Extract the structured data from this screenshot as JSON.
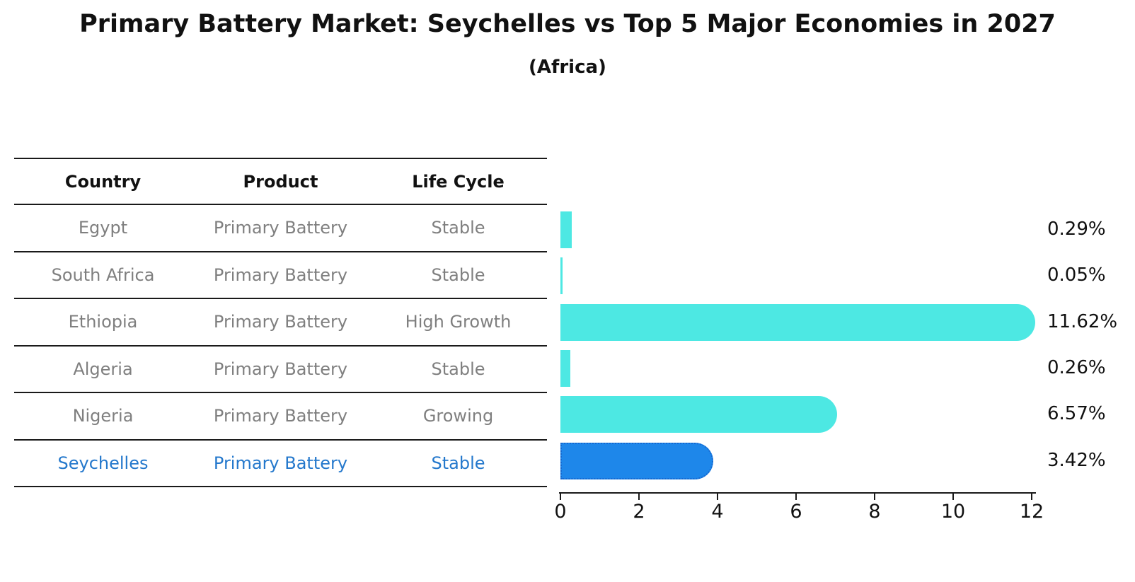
{
  "title": "Primary Battery Market: Seychelles vs Top 5 Major Economies in 2027",
  "subtitle": "(Africa)",
  "table": {
    "headers": [
      "Country",
      "Product",
      "Life Cycle"
    ],
    "rows": [
      {
        "country": "Egypt",
        "product": "Primary Battery",
        "life_cycle": "Stable",
        "highlight": false
      },
      {
        "country": "South Africa",
        "product": "Primary Battery",
        "life_cycle": "Stable",
        "highlight": false
      },
      {
        "country": "Ethiopia",
        "product": "Primary Battery",
        "life_cycle": "High Growth",
        "highlight": false
      },
      {
        "country": "Algeria",
        "product": "Primary Battery",
        "life_cycle": "Stable",
        "highlight": false
      },
      {
        "country": "Nigeria",
        "product": "Primary Battery",
        "life_cycle": "Growing",
        "highlight": false
      },
      {
        "country": "Seychelles",
        "product": "Primary Battery",
        "life_cycle": "Stable",
        "highlight": true
      }
    ]
  },
  "chart_data": {
    "type": "bar",
    "orientation": "horizontal",
    "categories": [
      "Egypt",
      "South Africa",
      "Ethiopia",
      "Algeria",
      "Nigeria",
      "Seychelles"
    ],
    "values": [
      0.29,
      0.05,
      11.62,
      0.26,
      6.57,
      3.42
    ],
    "value_labels": [
      "0.29%",
      "0.05%",
      "11.62%",
      "0.26%",
      "6.57%",
      "3.42%"
    ],
    "title": "Primary Battery Market: Seychelles vs Top 5 Major Economies in 2027",
    "subtitle": "(Africa)",
    "xlabel": "",
    "ylabel": "",
    "xlim": [
      0,
      12
    ],
    "xticks": [
      0,
      2,
      4,
      6,
      8,
      10,
      12
    ],
    "grid": false,
    "legend": false,
    "highlight_category": "Seychelles"
  },
  "colors": {
    "bar_default": "#4DE8E3",
    "bar_highlight": "#1E87EA",
    "bar_highlight_border": "#1668D0",
    "highlight_text": "#2478cc",
    "row_text": "#7f7f7f",
    "header_text": "#111111",
    "axis": "#1a1a1a"
  }
}
